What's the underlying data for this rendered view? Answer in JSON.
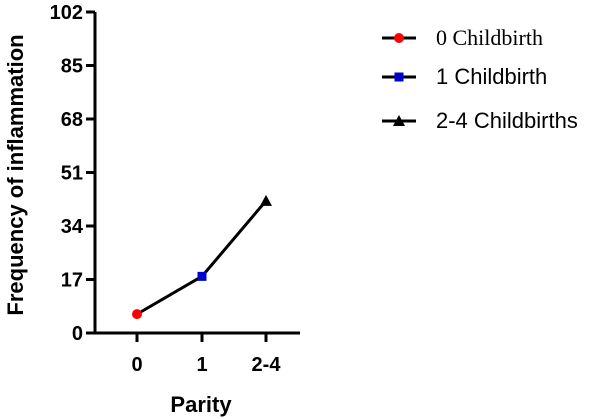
{
  "chart_data": {
    "type": "line",
    "categories": [
      "0",
      "1",
      "2-4"
    ],
    "values": [
      6,
      18,
      42
    ],
    "point_colors": [
      "#ff0000",
      "#0000cc",
      "#000000"
    ],
    "point_markers": [
      "circle",
      "square",
      "triangle"
    ],
    "line_color": "#000000",
    "xlabel": "Parity",
    "ylabel": "Frequency of inflammation",
    "ylim": [
      0,
      102
    ],
    "yticks": [
      "0",
      "17",
      "34",
      "51",
      "68",
      "85",
      "102"
    ],
    "grid": false,
    "legend_position": "top-right",
    "legend": [
      {
        "label": "0 Childbirth",
        "marker": "circle",
        "color": "#ff0000"
      },
      {
        "label": "1 Childbirth",
        "marker": "square",
        "color": "#0000cc"
      },
      {
        "label": "2-4 Childbirths",
        "marker": "triangle",
        "color": "#000000"
      }
    ]
  }
}
